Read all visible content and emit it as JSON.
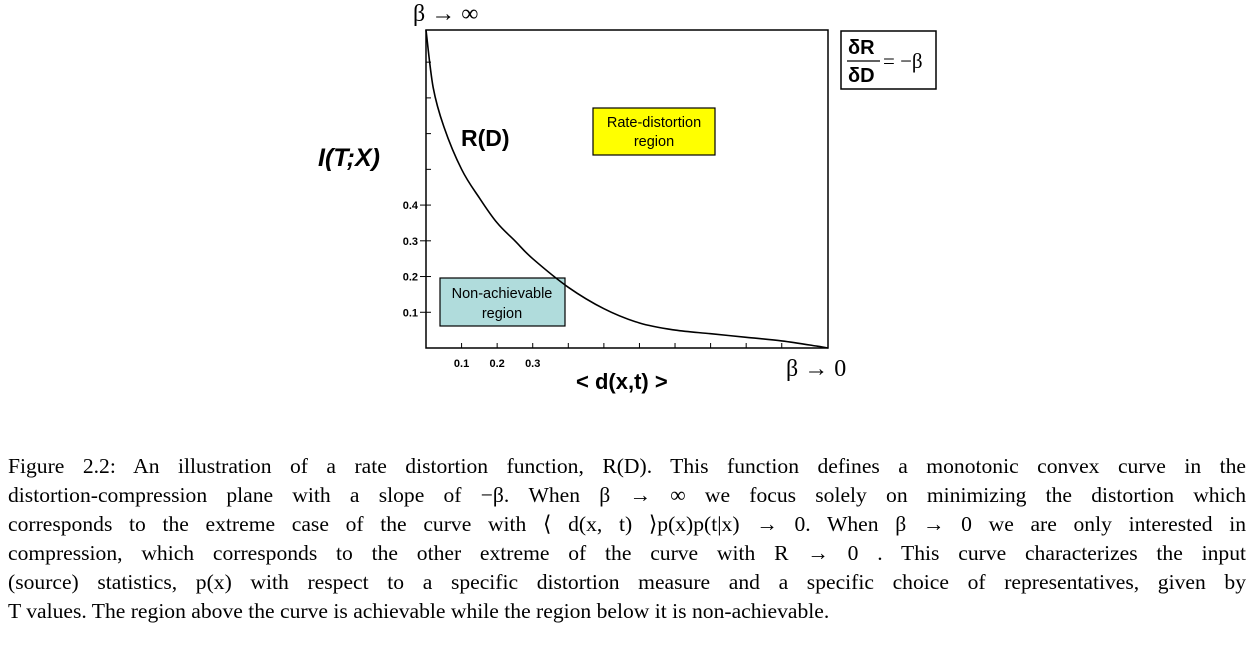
{
  "figure": {
    "top_label": "β → ∞",
    "bottom_right_label": "β → 0",
    "ylabel": "I(T;X)",
    "xlabel": "< d(x,t) >",
    "curve_label": "R(D)",
    "slope_box": {
      "num": "δR",
      "den": "δD",
      "rhs": "= −β"
    },
    "rate_box": {
      "line1": "Rate-distortion",
      "line2": "region",
      "color": "#ffff00"
    },
    "nonach_box": {
      "line1": "Non-achievable",
      "line2": "region",
      "color": "#b0dcdc"
    }
  },
  "chart_data": {
    "type": "line",
    "title": "",
    "xlabel": "< d(x,t) >",
    "ylabel": "I(T;X)",
    "x_tick_labels": [
      "0.1",
      "0.2",
      "0.3"
    ],
    "y_tick_labels": [
      "0.1",
      "0.2",
      "0.3",
      "0.4"
    ],
    "xlim": [
      0,
      1.13
    ],
    "ylim": [
      0,
      0.89
    ],
    "grid": false,
    "series": [
      {
        "name": "R(D)",
        "x": [
          0.0,
          0.02,
          0.05,
          0.1,
          0.15,
          0.2,
          0.25,
          0.3,
          0.4,
          0.5,
          0.6,
          0.7,
          0.8,
          0.9,
          1.0,
          1.1,
          1.13
        ],
        "y": [
          0.89,
          0.73,
          0.62,
          0.5,
          0.42,
          0.35,
          0.3,
          0.25,
          0.17,
          0.11,
          0.07,
          0.05,
          0.04,
          0.03,
          0.02,
          0.005,
          0.0
        ]
      }
    ]
  },
  "caption": {
    "lines": [
      "Figure 2.2: An illustration of a rate distortion function, R(D). This function defines a monotonic convex curve in the",
      "distortion-compression plane with a slope of −β. When β → ∞ we focus solely on minimizing the distortion which",
      "corresponds to the extreme case of the curve with ⟨ d(x, t) ⟩p(x)p(t|x) → 0. When β → 0 we are only interested in",
      "compression, which corresponds to the other extreme of the curve with R → 0 . This curve characterizes the input",
      "(source) statistics, p(x) with respect to a specific distortion measure and a specific choice of representatives, given by",
      "T values. The region above the curve is achievable while the region below it is non-achievable."
    ]
  }
}
